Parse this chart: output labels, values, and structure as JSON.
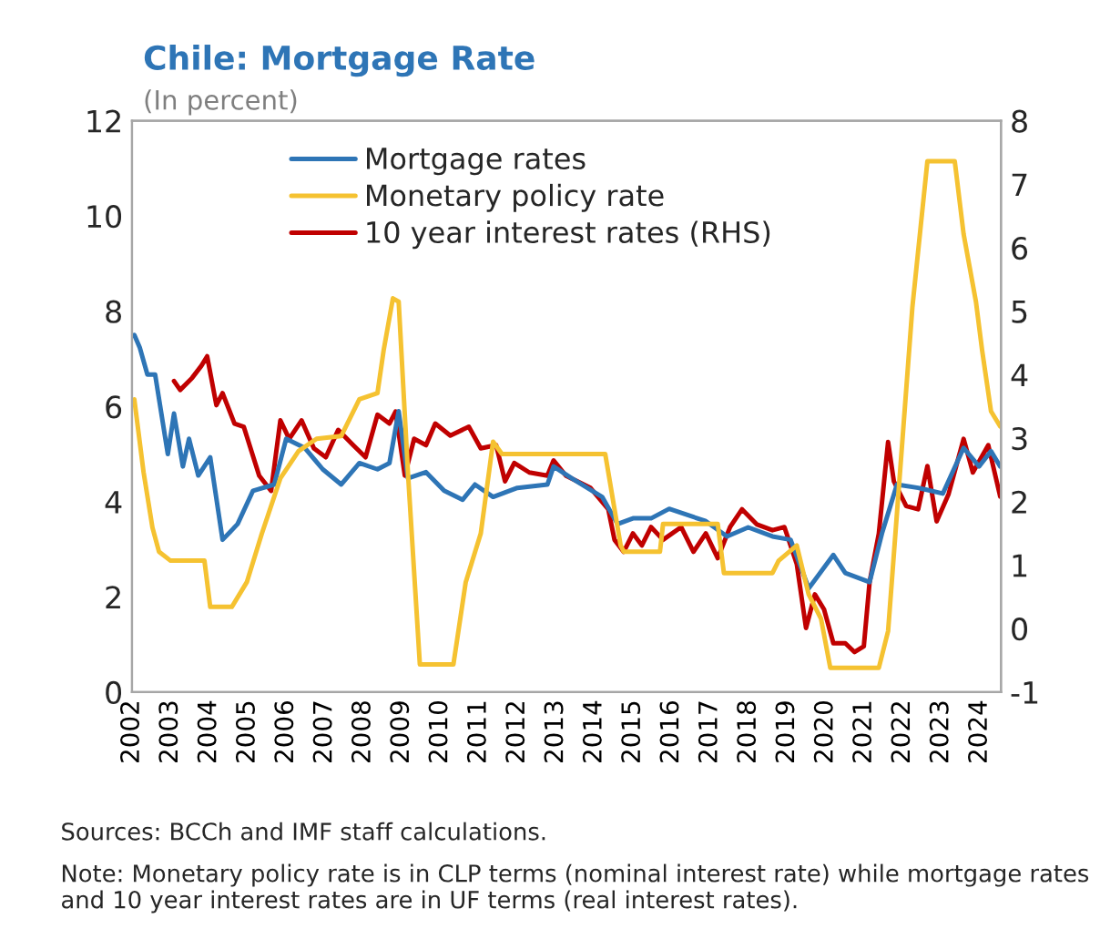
{
  "chart_data": {
    "type": "line",
    "title": "Chile: Mortgage Rate",
    "subtitle": "(In percent)",
    "xlim": [
      2002,
      2024.55
    ],
    "xticks": [
      2002,
      2003,
      2004,
      2005,
      2006,
      2007,
      2008,
      2009,
      2010,
      2011,
      2012,
      2013,
      2014,
      2015,
      2016,
      2017,
      2018,
      2019,
      2020,
      2021,
      2022,
      2023,
      2024
    ],
    "ylim": [
      0,
      12
    ],
    "yticks": [
      0,
      2,
      4,
      6,
      8,
      10,
      12
    ],
    "y2lim": [
      -1,
      8
    ],
    "y2ticks": [
      -1,
      0,
      1,
      2,
      3,
      4,
      5,
      6,
      7,
      8
    ],
    "legend": "top",
    "grid": false,
    "marker": "none",
    "line_style": "solid",
    "series": [
      {
        "name": "Mortgage rates",
        "color": "#2e75b6",
        "x": [
          2002.06,
          2002.2,
          2002.4,
          2002.6,
          2002.93,
          2003.09,
          2003.32,
          2003.48,
          2003.72,
          2004.03,
          2004.35,
          2004.74,
          2005.14,
          2005.69,
          2006.0,
          2006.48,
          2006.95,
          2007.43,
          2007.9,
          2008.37,
          2008.68,
          2008.92,
          2009.16,
          2009.63,
          2010.1,
          2010.58,
          2010.9,
          2011.37,
          2012.0,
          2012.78,
          2012.94,
          2013.41,
          2014.2,
          2014.6,
          2015.0,
          2015.47,
          2015.94,
          2016.89,
          2017.44,
          2017.99,
          2018.62,
          2019.09,
          2019.56,
          2019.8,
          2020.2,
          2020.51,
          2021.14,
          2021.46,
          2021.85,
          2022.4,
          2023.04,
          2023.58,
          2023.98,
          2024.29,
          2024.53
        ],
        "values": [
          7.5,
          7.24,
          6.67,
          6.67,
          5.0,
          5.85,
          4.74,
          5.32,
          4.55,
          4.93,
          3.2,
          3.53,
          4.23,
          4.36,
          5.32,
          5.13,
          4.68,
          4.36,
          4.81,
          4.68,
          4.81,
          5.9,
          4.49,
          4.62,
          4.23,
          4.04,
          4.36,
          4.1,
          4.29,
          4.36,
          4.74,
          4.49,
          4.1,
          3.53,
          3.65,
          3.65,
          3.85,
          3.59,
          3.27,
          3.46,
          3.27,
          3.2,
          2.18,
          2.44,
          2.88,
          2.5,
          2.31,
          3.33,
          4.36,
          4.29,
          4.17,
          5.13,
          4.74,
          5.06,
          4.74
        ]
      },
      {
        "name": "Monetary policy rate",
        "color": "#f5c231",
        "x": [
          2002.06,
          2002.3,
          2002.53,
          2002.7,
          2003.0,
          2003.88,
          2004.03,
          2004.59,
          2004.98,
          2005.37,
          2005.85,
          2006.32,
          2006.79,
          2007.43,
          2007.9,
          2008.37,
          2008.53,
          2008.77,
          2008.92,
          2009.16,
          2009.47,
          2010.34,
          2010.66,
          2011.05,
          2011.37,
          2011.6,
          2014.28,
          2014.68,
          2014.76,
          2015.7,
          2015.78,
          2017.2,
          2017.36,
          2018.62,
          2018.78,
          2019.25,
          2019.56,
          2019.88,
          2020.12,
          2021.38,
          2021.62,
          2021.93,
          2022.25,
          2022.64,
          2023.35,
          2023.58,
          2023.9,
          2024.06,
          2024.29,
          2024.53
        ],
        "values": [
          6.15,
          4.62,
          3.46,
          2.95,
          2.76,
          2.76,
          1.79,
          1.79,
          2.31,
          3.33,
          4.49,
          5.06,
          5.32,
          5.38,
          6.15,
          6.28,
          7.18,
          8.27,
          8.2,
          4.62,
          0.58,
          0.58,
          2.31,
          3.33,
          5.26,
          5.0,
          5.0,
          3.08,
          2.95,
          2.95,
          3.53,
          3.53,
          2.5,
          2.5,
          2.76,
          3.08,
          2.05,
          1.54,
          0.51,
          0.51,
          1.28,
          4.62,
          8.08,
          11.15,
          11.15,
          9.62,
          8.2,
          7.18,
          5.9,
          5.58
        ]
      },
      {
        "name": "10 year interest rates (RHS)",
        "color": "#c00000",
        "axis": "y2",
        "x": [
          2003.09,
          2003.25,
          2003.56,
          2003.8,
          2003.95,
          2004.19,
          2004.35,
          2004.66,
          2004.9,
          2005.3,
          2005.61,
          2005.85,
          2006.08,
          2006.4,
          2006.72,
          2007.03,
          2007.35,
          2007.74,
          2008.06,
          2008.37,
          2008.68,
          2008.84,
          2009.08,
          2009.32,
          2009.63,
          2009.87,
          2010.26,
          2010.74,
          2011.05,
          2011.45,
          2011.68,
          2011.92,
          2012.31,
          2012.78,
          2012.94,
          2013.26,
          2013.89,
          2014.36,
          2014.52,
          2014.76,
          2015.0,
          2015.23,
          2015.47,
          2015.78,
          2016.25,
          2016.57,
          2016.89,
          2017.2,
          2017.52,
          2017.83,
          2018.22,
          2018.62,
          2018.93,
          2019.25,
          2019.49,
          2019.72,
          2019.96,
          2020.2,
          2020.51,
          2020.75,
          2020.99,
          2021.14,
          2021.38,
          2021.62,
          2021.77,
          2022.09,
          2022.4,
          2022.64,
          2022.88,
          2023.19,
          2023.58,
          2023.82,
          2024.22,
          2024.53
        ],
        "values": [
          3.9,
          3.76,
          3.95,
          4.14,
          4.29,
          3.52,
          3.71,
          3.23,
          3.18,
          2.41,
          2.17,
          3.28,
          2.99,
          3.28,
          2.84,
          2.7,
          3.13,
          2.89,
          2.7,
          3.37,
          3.23,
          3.42,
          2.41,
          2.99,
          2.89,
          3.23,
          3.04,
          3.18,
          2.84,
          2.89,
          2.32,
          2.61,
          2.46,
          2.41,
          2.65,
          2.41,
          2.22,
          1.88,
          1.4,
          1.21,
          1.5,
          1.31,
          1.6,
          1.4,
          1.6,
          1.21,
          1.5,
          1.11,
          1.6,
          1.88,
          1.64,
          1.55,
          1.6,
          1.02,
          0.01,
          0.54,
          0.3,
          -0.23,
          -0.23,
          -0.37,
          -0.28,
          0.73,
          1.5,
          2.94,
          2.32,
          1.93,
          1.88,
          2.56,
          1.69,
          2.12,
          2.99,
          2.46,
          2.89,
          2.08
        ]
      }
    ],
    "annotations": [
      "Sources: BCCh and IMF staff calculations.",
      "Note: Monetary policy rate is in CLP terms (nominal interest rate) while mortgage rates and 10 year interest rates are in UF terms (real interest rates)."
    ]
  }
}
